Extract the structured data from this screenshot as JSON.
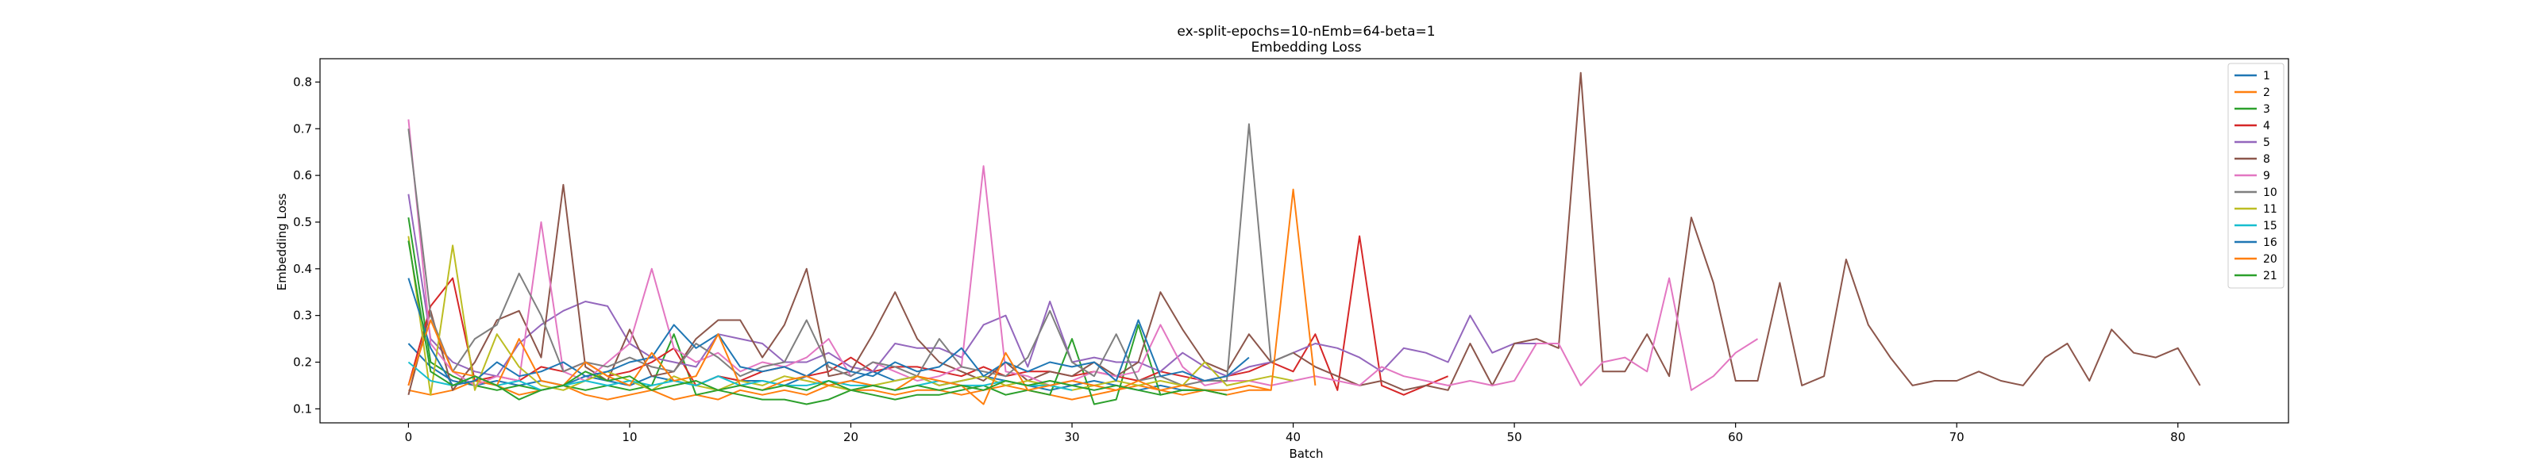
{
  "chart_data": {
    "type": "line",
    "title": "ex-split-epochs=10-nEmb=64-beta=1",
    "subtitle": "Embedding Loss",
    "xlabel": "Batch",
    "ylabel": "Embedding Loss",
    "xlim": [
      -4,
      85
    ],
    "ylim": [
      0.07,
      0.85
    ],
    "xticks": [
      0,
      10,
      20,
      30,
      40,
      50,
      60,
      70,
      80
    ],
    "yticks": [
      0.1,
      0.2,
      0.3,
      0.4,
      0.5,
      0.6,
      0.7,
      0.8
    ],
    "grid": false,
    "legend_placement": "top-right",
    "series": [
      {
        "name": "1",
        "color": "#1f77b4",
        "values": [
          0.24,
          0.19,
          0.16,
          0.15,
          0.16,
          0.15,
          0.16,
          0.15,
          0.17,
          0.16,
          0.15,
          0.17,
          0.16,
          0.15,
          0.17,
          0.16,
          0.16,
          0.15,
          0.17,
          0.15,
          0.16,
          0.18,
          0.16,
          0.17,
          0.15,
          0.16,
          0.17,
          0.16,
          0.15,
          0.14,
          0.15,
          0.16,
          0.15,
          0.14,
          0.15,
          0.14,
          0.14,
          0.14
        ]
      },
      {
        "name": "2",
        "color": "#ff7f0e",
        "values": [
          0.14,
          0.13,
          0.14,
          0.16,
          0.15,
          0.13,
          0.14,
          0.15,
          0.13,
          0.12,
          0.13,
          0.14,
          0.12,
          0.13,
          0.12,
          0.14,
          0.13,
          0.14,
          0.13,
          0.15,
          0.14,
          0.14,
          0.13,
          0.14,
          0.14,
          0.13,
          0.14,
          0.15,
          0.14,
          0.13,
          0.12,
          0.13,
          0.14,
          0.15,
          0.14,
          0.13,
          0.14,
          0.14,
          0.15,
          0.14
        ]
      },
      {
        "name": "3",
        "color": "#2ca02c",
        "values": [
          0.51,
          0.2,
          0.17,
          0.15,
          0.14,
          0.15,
          0.14,
          0.15,
          0.14,
          0.15,
          0.14,
          0.15,
          0.26,
          0.13,
          0.14,
          0.13,
          0.12,
          0.12,
          0.11,
          0.12,
          0.14,
          0.13,
          0.12,
          0.13,
          0.13,
          0.14,
          0.15,
          0.13,
          0.14,
          0.13,
          0.25,
          0.11,
          0.12,
          0.28,
          0.13,
          0.14,
          0.14,
          0.13
        ]
      },
      {
        "name": "4",
        "color": "#d62728",
        "values": [
          0.15,
          0.32,
          0.38,
          0.16,
          0.17,
          0.16,
          0.19,
          0.18,
          0.2,
          0.17,
          0.18,
          0.2,
          0.23,
          0.15,
          0.17,
          0.16,
          0.18,
          0.19,
          0.17,
          0.18,
          0.21,
          0.18,
          0.19,
          0.19,
          0.18,
          0.17,
          0.19,
          0.17,
          0.18,
          0.18,
          0.17,
          0.18,
          0.17,
          0.16,
          0.18,
          0.17,
          0.16,
          0.17,
          0.18,
          0.2,
          0.18,
          0.26,
          0.14,
          0.47,
          0.15,
          0.13,
          0.15,
          0.17
        ]
      },
      {
        "name": "5",
        "color": "#9467bd",
        "values": [
          0.56,
          0.25,
          0.2,
          0.18,
          0.17,
          0.24,
          0.28,
          0.31,
          0.33,
          0.32,
          0.24,
          0.21,
          0.2,
          0.19,
          0.26,
          0.25,
          0.24,
          0.2,
          0.2,
          0.22,
          0.19,
          0.18,
          0.24,
          0.23,
          0.23,
          0.21,
          0.28,
          0.3,
          0.19,
          0.33,
          0.2,
          0.21,
          0.2,
          0.2,
          0.18,
          0.22,
          0.19,
          0.17,
          0.19,
          0.2,
          0.22,
          0.24,
          0.23,
          0.21,
          0.18,
          0.23,
          0.22,
          0.2,
          0.3,
          0.22,
          0.24,
          0.24,
          0.24
        ]
      },
      {
        "name": "8",
        "color": "#8c564b",
        "values": [
          0.13,
          0.31,
          0.14,
          0.2,
          0.29,
          0.31,
          0.21,
          0.58,
          0.19,
          0.16,
          0.27,
          0.17,
          0.18,
          0.25,
          0.29,
          0.29,
          0.21,
          0.28,
          0.4,
          0.17,
          0.18,
          0.26,
          0.35,
          0.25,
          0.2,
          0.18,
          0.16,
          0.2,
          0.16,
          0.18,
          0.17,
          0.2,
          0.17,
          0.2,
          0.35,
          0.27,
          0.2,
          0.18,
          0.26,
          0.2,
          0.22,
          0.19,
          0.17,
          0.15,
          0.16,
          0.14,
          0.15,
          0.14,
          0.24,
          0.15,
          0.24,
          0.25,
          0.23,
          0.82,
          0.18,
          0.18,
          0.26,
          0.17,
          0.51,
          0.37,
          0.16,
          0.16,
          0.37,
          0.15,
          0.17,
          0.42,
          0.28,
          0.21,
          0.15,
          0.16,
          0.16,
          0.18,
          0.16,
          0.15,
          0.21,
          0.24,
          0.16,
          0.27,
          0.22,
          0.21,
          0.23,
          0.15
        ]
      },
      {
        "name": "9",
        "color": "#e377c2",
        "values": [
          0.72,
          0.24,
          0.18,
          0.15,
          0.17,
          0.16,
          0.5,
          0.18,
          0.16,
          0.2,
          0.24,
          0.4,
          0.23,
          0.2,
          0.22,
          0.18,
          0.2,
          0.19,
          0.21,
          0.25,
          0.17,
          0.2,
          0.18,
          0.16,
          0.17,
          0.19,
          0.62,
          0.18,
          0.17,
          0.15,
          0.16,
          0.18,
          0.17,
          0.18,
          0.28,
          0.19,
          0.15,
          0.16,
          0.16,
          0.15,
          0.16,
          0.17,
          0.16,
          0.15,
          0.19,
          0.17,
          0.16,
          0.15,
          0.16,
          0.15,
          0.16,
          0.24,
          0.24,
          0.15,
          0.2,
          0.21,
          0.18,
          0.38,
          0.14,
          0.17,
          0.22,
          0.25
        ]
      },
      {
        "name": "10",
        "color": "#7f7f7f",
        "values": [
          0.7,
          0.3,
          0.18,
          0.25,
          0.28,
          0.39,
          0.3,
          0.18,
          0.2,
          0.19,
          0.21,
          0.19,
          0.18,
          0.24,
          0.21,
          0.17,
          0.19,
          0.2,
          0.29,
          0.19,
          0.17,
          0.2,
          0.19,
          0.17,
          0.25,
          0.19,
          0.18,
          0.17,
          0.21,
          0.31,
          0.2,
          0.17,
          0.26,
          0.16,
          0.17,
          0.15,
          0.16,
          0.16,
          0.71,
          0.2,
          0.22
        ]
      },
      {
        "name": "11",
        "color": "#bcbd22",
        "values": [
          0.47,
          0.13,
          0.45,
          0.14,
          0.26,
          0.19,
          0.15,
          0.14,
          0.16,
          0.18,
          0.16,
          0.14,
          0.17,
          0.15,
          0.14,
          0.16,
          0.15,
          0.17,
          0.16,
          0.15,
          0.14,
          0.15,
          0.16,
          0.17,
          0.15,
          0.16,
          0.17,
          0.15,
          0.16,
          0.15,
          0.14,
          0.15,
          0.16,
          0.15,
          0.16,
          0.15,
          0.2,
          0.15,
          0.16,
          0.17,
          0.16
        ]
      },
      {
        "name": "15",
        "color": "#17becf",
        "values": [
          0.2,
          0.16,
          0.15,
          0.17,
          0.15,
          0.16,
          0.14,
          0.15,
          0.16,
          0.15,
          0.16,
          0.15,
          0.16,
          0.15,
          0.17,
          0.15,
          0.16,
          0.15,
          0.15,
          0.16,
          0.15,
          0.15,
          0.14,
          0.15,
          0.16,
          0.15,
          0.15,
          0.16,
          0.15,
          0.15,
          0.14
        ]
      },
      {
        "name": "16",
        "color": "#1f77b4",
        "values": [
          0.38,
          0.23,
          0.15,
          0.16,
          0.2,
          0.17,
          0.18,
          0.2,
          0.17,
          0.18,
          0.2,
          0.21,
          0.28,
          0.23,
          0.26,
          0.19,
          0.18,
          0.19,
          0.17,
          0.2,
          0.18,
          0.17,
          0.2,
          0.18,
          0.19,
          0.23,
          0.17,
          0.2,
          0.18,
          0.2,
          0.19,
          0.2,
          0.16,
          0.29,
          0.17,
          0.18,
          0.16,
          0.17,
          0.21
        ]
      },
      {
        "name": "20",
        "color": "#ff7f0e",
        "values": [
          0.15,
          0.29,
          0.18,
          0.17,
          0.15,
          0.25,
          0.16,
          0.15,
          0.2,
          0.17,
          0.15,
          0.22,
          0.16,
          0.17,
          0.26,
          0.15,
          0.14,
          0.16,
          0.17,
          0.15,
          0.16,
          0.15,
          0.14,
          0.17,
          0.16,
          0.15,
          0.11,
          0.22,
          0.14,
          0.15,
          0.16,
          0.15,
          0.14,
          0.16,
          0.14,
          0.15,
          0.14,
          0.13,
          0.14,
          0.14,
          0.57,
          0.15
        ]
      },
      {
        "name": "21",
        "color": "#2ca02c",
        "values": [
          0.46,
          0.18,
          0.15,
          0.17,
          0.15,
          0.12,
          0.14,
          0.15,
          0.18,
          0.16,
          0.17,
          0.14,
          0.15,
          0.16,
          0.14,
          0.15,
          0.14,
          0.15,
          0.14,
          0.16,
          0.14,
          0.15,
          0.14,
          0.15,
          0.14,
          0.15,
          0.14,
          0.16,
          0.15,
          0.16,
          0.15,
          0.14,
          0.15,
          0.14,
          0.13,
          0.14,
          0.14,
          0.13
        ]
      }
    ]
  }
}
